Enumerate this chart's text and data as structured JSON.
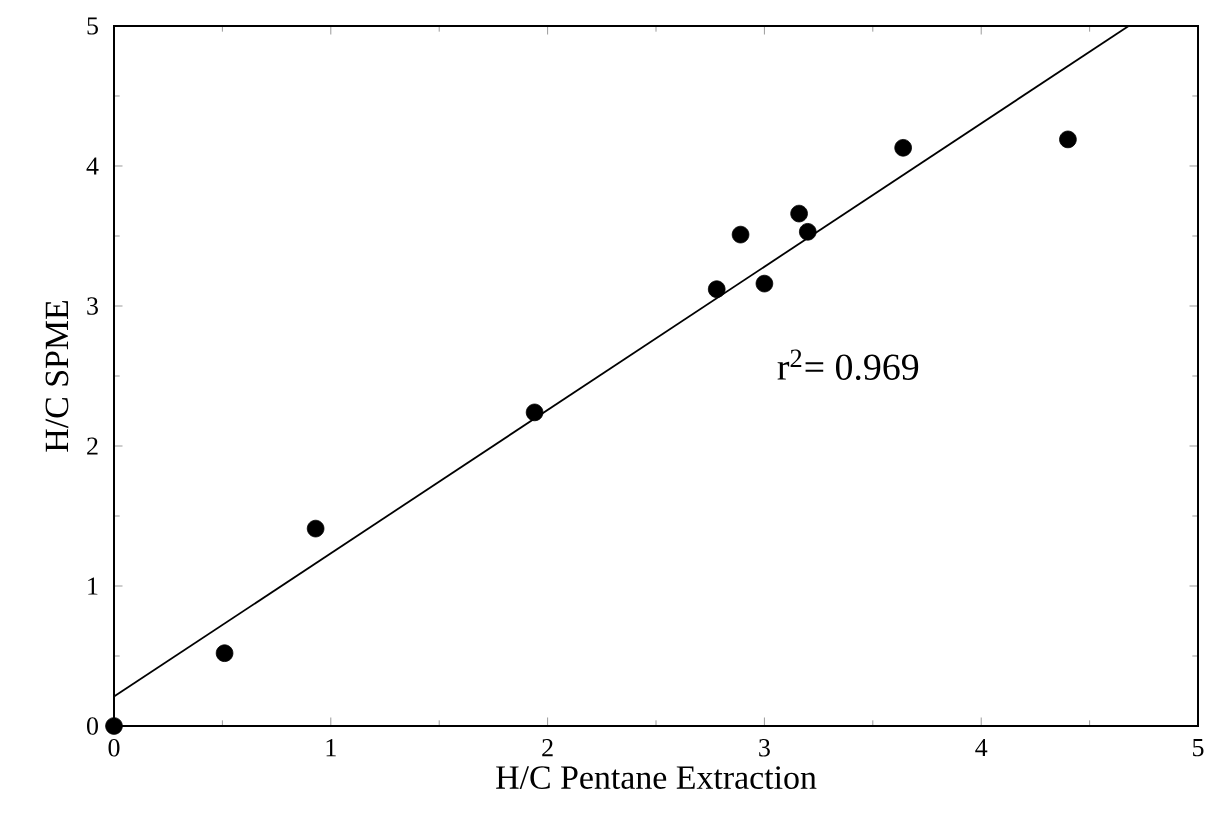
{
  "chart_data": {
    "type": "scatter",
    "xlabel": "H/C Pentane Extraction",
    "ylabel": "H/C SPME",
    "xlim": [
      0,
      5
    ],
    "ylim": [
      0,
      5
    ],
    "xticks": [
      0,
      1,
      2,
      3,
      4,
      5
    ],
    "yticks": [
      0,
      1,
      2,
      3,
      4,
      5
    ],
    "grid": false,
    "series": [
      {
        "color": "#000000",
        "marker": "circle",
        "x": [
          0,
          0.51,
          0.93,
          1.94,
          2.78,
          2.89,
          3.0,
          3.16,
          3.2,
          3.64,
          4.4
        ],
        "values": [
          0,
          0.52,
          1.41,
          2.24,
          3.12,
          3.51,
          3.16,
          3.66,
          3.53,
          4.13,
          4.19
        ]
      },
      {
        "type": "line",
        "color": "#000000",
        "marker": "none",
        "x": [
          0,
          4.68
        ],
        "values": [
          0.21,
          5
        ]
      }
    ],
    "annotations": [
      "r$^{2}$= 0.969"
    ]
  }
}
